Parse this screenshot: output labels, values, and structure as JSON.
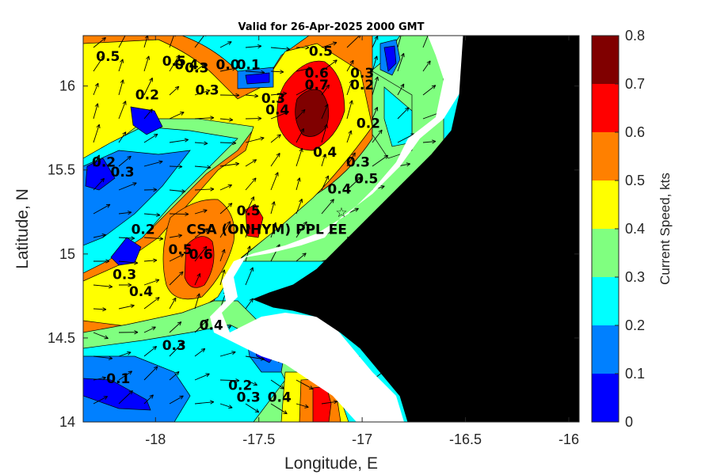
{
  "chart_data": {
    "type": "heatmap",
    "title": "Valid for 26-Apr-2025 2000 GMT",
    "xlabel": "Longitude, E",
    "ylabel": "Latitude, N",
    "xlim": [
      -18.35,
      -15.95
    ],
    "ylim": [
      14.0,
      16.3
    ],
    "x_ticks": [
      -18,
      -17.5,
      -17,
      -16.5,
      -16
    ],
    "x_tick_labels": [
      "-18",
      "-17.5",
      "-17",
      "-16.5",
      "-16"
    ],
    "y_ticks": [
      14,
      14.5,
      15,
      15.5,
      16
    ],
    "y_tick_labels": [
      "14",
      "14.5",
      "15",
      "15.5",
      "16"
    ],
    "colorbar": {
      "label": "Current Speed, kts",
      "range": [
        0,
        0.8
      ],
      "levels": [
        0,
        0.1,
        0.2,
        0.3,
        0.4,
        0.5,
        0.6,
        0.7,
        0.8
      ],
      "tick_labels": [
        "0",
        "0.1",
        "0.2",
        "0.3",
        "0.4",
        "0.5",
        "0.6",
        "0.7",
        "0.8"
      ],
      "colors": [
        "#0000ff",
        "#0080ff",
        "#00ffff",
        "#80ff80",
        "#ffff00",
        "#ff8000",
        "#ff0000",
        "#800000"
      ]
    },
    "land_color": "#000000",
    "coast_band_color": "#ffffff",
    "annotations": [
      {
        "text": "CSA (ONHYM) PPL EE",
        "lon": -17.85,
        "lat": 15.12
      },
      {
        "text": "☆",
        "lon": -17.1,
        "lat": 15.22,
        "marker": "star"
      }
    ],
    "contour_labels": [
      {
        "text": "0.5",
        "lon": -18.23,
        "lat": 16.15
      },
      {
        "text": "0.5",
        "lon": -17.91,
        "lat": 16.12
      },
      {
        "text": "0.4",
        "lon": -17.85,
        "lat": 16.1
      },
      {
        "text": "0.3",
        "lon": -17.8,
        "lat": 16.08
      },
      {
        "text": "0.0",
        "lon": -17.65,
        "lat": 16.1
      },
      {
        "text": "0.1",
        "lon": -17.55,
        "lat": 16.1
      },
      {
        "text": "0.3",
        "lon": -17.75,
        "lat": 15.95
      },
      {
        "text": "0.2",
        "lon": -18.04,
        "lat": 15.92
      },
      {
        "text": "0.5",
        "lon": -17.2,
        "lat": 16.18
      },
      {
        "text": "0.6",
        "lon": -17.22,
        "lat": 16.05
      },
      {
        "text": "0.7",
        "lon": -17.22,
        "lat": 15.98
      },
      {
        "text": "0.3",
        "lon": -17.43,
        "lat": 15.9
      },
      {
        "text": "0.4",
        "lon": -17.41,
        "lat": 15.83
      },
      {
        "text": "0.3",
        "lon": -17.0,
        "lat": 16.05
      },
      {
        "text": "0.2",
        "lon": -17.0,
        "lat": 15.98
      },
      {
        "text": "0.2",
        "lon": -16.97,
        "lat": 15.75
      },
      {
        "text": "0.4",
        "lon": -17.18,
        "lat": 15.58
      },
      {
        "text": "0.3",
        "lon": -17.02,
        "lat": 15.52
      },
      {
        "text": "0.5",
        "lon": -16.98,
        "lat": 15.42
      },
      {
        "text": "0.4",
        "lon": -17.11,
        "lat": 15.36
      },
      {
        "text": "0.2",
        "lon": -18.25,
        "lat": 15.52
      },
      {
        "text": "0.3",
        "lon": -18.16,
        "lat": 15.46
      },
      {
        "text": "0.5",
        "lon": -17.55,
        "lat": 15.23
      },
      {
        "text": "0.2",
        "lon": -18.06,
        "lat": 15.12
      },
      {
        "text": "0.5",
        "lon": -17.88,
        "lat": 15.0
      },
      {
        "text": "0.6",
        "lon": -17.78,
        "lat": 14.97
      },
      {
        "text": "0.3",
        "lon": -18.15,
        "lat": 14.85
      },
      {
        "text": "0.4",
        "lon": -18.07,
        "lat": 14.75
      },
      {
        "text": "0.4",
        "lon": -17.73,
        "lat": 14.55
      },
      {
        "text": "0.3",
        "lon": -17.91,
        "lat": 14.43
      },
      {
        "text": "0.1",
        "lon": -18.18,
        "lat": 14.23
      },
      {
        "text": "0.2",
        "lon": -17.59,
        "lat": 14.19
      },
      {
        "text": "0.3",
        "lon": -17.55,
        "lat": 14.12
      },
      {
        "text": "0.4",
        "lon": -17.4,
        "lat": 14.12
      }
    ]
  }
}
